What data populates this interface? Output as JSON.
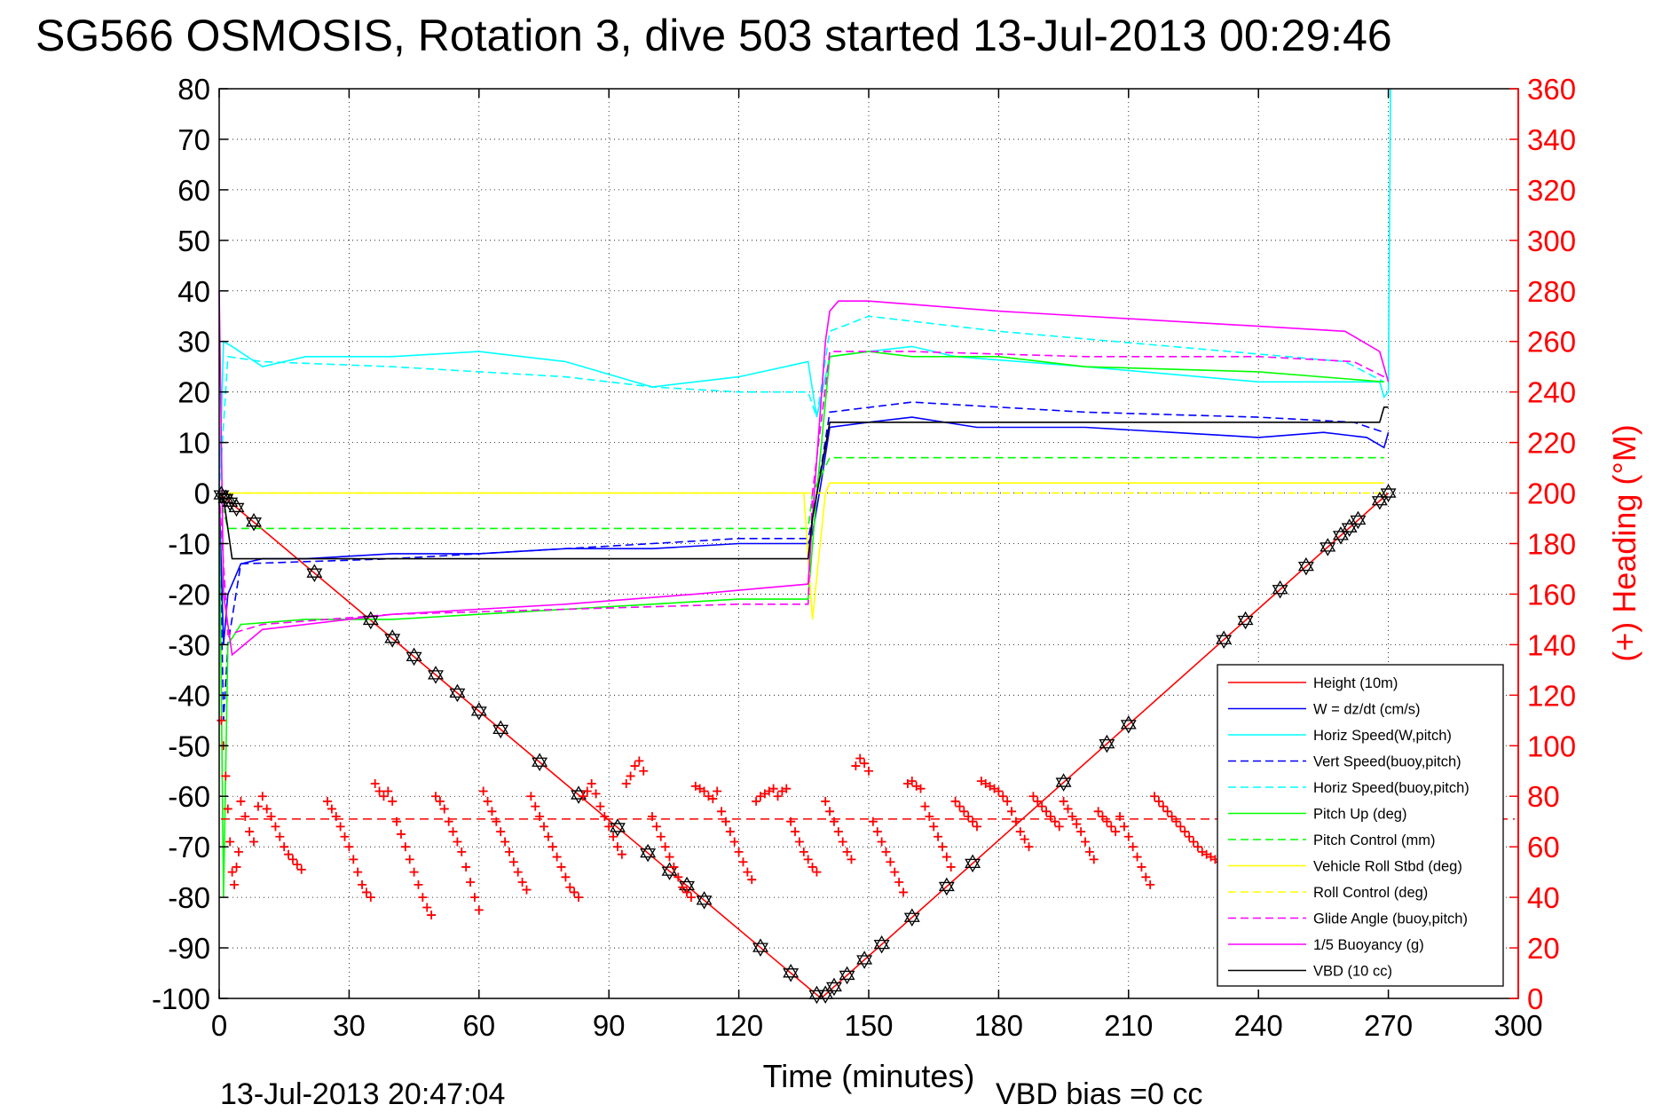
{
  "title": "SG566 OSMOSIS, Rotation 3, dive 503 started 13-Jul-2013 00:29:46",
  "footer": {
    "timestamp": "13-Jul-2013 20:47:04",
    "vbd_bias": "VBD bias =0 cc"
  },
  "colors": {
    "red": "#ff0000",
    "blue": "#0000ff",
    "cyan": "#00ffff",
    "green": "#00ff00",
    "yellow": "#ffff00",
    "magenta": "#ff00ff",
    "black": "#000000"
  },
  "chart_data": {
    "type": "line",
    "title": "SG566 OSMOSIS, Rotation 3, dive 503 started 13-Jul-2013 00:29:46",
    "xlabel": "Time (minutes)",
    "ylabel": "",
    "y2label": "(+) Heading (°M)",
    "xlim": [
      0,
      300
    ],
    "ylim": [
      -100,
      80
    ],
    "y2lim": [
      0,
      360
    ],
    "grid": true,
    "legend_position": "bottom-right",
    "x_ticks": [
      "0",
      "30",
      "60",
      "90",
      "120",
      "150",
      "180",
      "210",
      "240",
      "270",
      "300"
    ],
    "y_ticks": [
      "80",
      "70",
      "60",
      "50",
      "40",
      "30",
      "20",
      "10",
      "0",
      "-10",
      "-20",
      "-30",
      "-40",
      "-50",
      "-60",
      "-70",
      "-80",
      "-90",
      "-100"
    ],
    "y2_ticks": [
      "360",
      "340",
      "320",
      "300",
      "280",
      "260",
      "240",
      "220",
      "200",
      "180",
      "160",
      "140",
      "120",
      "100",
      "80",
      "60",
      "40",
      "20",
      "0"
    ],
    "series": [
      {
        "name": "Height (10m)",
        "color": "#ff0000",
        "dash": "solid",
        "x": [
          0,
          139,
          270
        ],
        "y": [
          0,
          -100,
          0
        ]
      },
      {
        "name": "W = dz/dt (cm/s)",
        "color": "#0000ff",
        "dash": "solid",
        "x": [
          0,
          1,
          2,
          5,
          10,
          20,
          40,
          60,
          80,
          100,
          120,
          136,
          137,
          139,
          141,
          150,
          160,
          175,
          180,
          200,
          220,
          240,
          255,
          265,
          269,
          270
        ],
        "y": [
          0,
          -30,
          -20,
          -14,
          -13,
          -13,
          -12,
          -12,
          -11,
          -11,
          -10,
          -10,
          -8,
          2,
          13,
          14,
          15,
          13,
          13,
          13,
          12,
          11,
          12,
          11,
          9,
          12
        ]
      },
      {
        "name": "Horiz Speed(W,pitch)",
        "color": "#00ffff",
        "dash": "solid",
        "x": [
          0,
          1,
          3,
          10,
          20,
          40,
          60,
          70,
          80,
          100,
          120,
          136,
          138,
          141,
          150,
          160,
          170,
          200,
          240,
          260,
          268,
          269,
          270,
          270.5
        ],
        "y": [
          0,
          30,
          29,
          25,
          27,
          27,
          28,
          27,
          26,
          21,
          23,
          26,
          15,
          27,
          28,
          29,
          27,
          25,
          22,
          22,
          22,
          19,
          20,
          80
        ]
      },
      {
        "name": "Vert Speed(buoy,pitch)",
        "color": "#0000ff",
        "dash": "dashed",
        "x": [
          0,
          1,
          2,
          5,
          40,
          80,
          120,
          136,
          137,
          139,
          141,
          160,
          200,
          240,
          262,
          269
        ],
        "y": [
          0,
          -45,
          -30,
          -14,
          -13,
          -11,
          -9,
          -9,
          -5,
          5,
          16,
          18,
          16,
          15,
          14,
          12
        ]
      },
      {
        "name": "Horiz Speed(buoy,pitch)",
        "color": "#00ffff",
        "dash": "dashed",
        "x": [
          0,
          2,
          10,
          40,
          80,
          100,
          120,
          136,
          138,
          141,
          150,
          180,
          220,
          260,
          269
        ],
        "y": [
          0,
          27,
          26,
          25,
          23,
          21,
          20,
          20,
          15,
          32,
          35,
          32,
          29,
          26,
          22
        ]
      },
      {
        "name": "Pitch Up (deg)",
        "color": "#00ff00",
        "dash": "solid",
        "x": [
          0,
          1,
          2,
          5,
          20,
          40,
          60,
          80,
          100,
          120,
          136,
          138,
          141,
          150,
          160,
          180,
          200,
          240,
          269
        ],
        "y": [
          0,
          -80,
          -30,
          -26,
          -25,
          -25,
          -24,
          -23,
          -22,
          -21,
          -21,
          0,
          27,
          28,
          27,
          27,
          25,
          24,
          22
        ]
      },
      {
        "name": "Pitch Control (mm)",
        "color": "#00ff00",
        "dash": "dashed",
        "x": [
          0,
          2,
          136,
          137,
          141,
          269
        ],
        "y": [
          0,
          -7,
          -7,
          0,
          7,
          7
        ]
      },
      {
        "name": "Vehicle Roll Stbd (deg)",
        "color": "#ffff00",
        "dash": "solid",
        "x": [
          0,
          2,
          135,
          137,
          140,
          141,
          269
        ],
        "y": [
          0,
          0,
          0,
          -25,
          0,
          2,
          2
        ]
      },
      {
        "name": "Roll Control (deg)",
        "color": "#ffff00",
        "dash": "dashed",
        "x": [
          0,
          2,
          136,
          137,
          141,
          269
        ],
        "y": [
          0,
          0,
          0,
          0,
          0,
          0
        ]
      },
      {
        "name": "Glide Angle (buoy,pitch)",
        "color": "#ff00ff",
        "dash": "dashed",
        "x": [
          0,
          2,
          10,
          40,
          80,
          120,
          136,
          137,
          141,
          160,
          200,
          240,
          262,
          269
        ],
        "y": [
          0,
          -28,
          -26,
          -24,
          -23,
          -22,
          -22,
          0,
          28,
          28,
          27,
          27,
          26,
          23
        ]
      },
      {
        "name": "1/5 Buoyancy (g)",
        "color": "#ff00ff",
        "dash": "solid",
        "x": [
          0,
          1,
          3,
          10,
          40,
          80,
          110,
          136,
          137,
          140,
          141,
          143,
          150,
          180,
          220,
          260,
          268,
          270
        ],
        "y": [
          40,
          -20,
          -32,
          -27,
          -24,
          -22,
          -20,
          -18,
          -5,
          30,
          36,
          38,
          38,
          36,
          34,
          32,
          28,
          22
        ]
      },
      {
        "name": "VBD (10 cc)",
        "color": "#000000",
        "dash": "solid",
        "x": [
          0,
          1,
          3,
          136,
          137,
          141,
          143,
          268,
          269,
          270
        ],
        "y": [
          0,
          -1,
          -13,
          -13,
          -5,
          14,
          14,
          14,
          17,
          17
        ]
      }
    ],
    "height_markers_x": [
      0.5,
      1.5,
      2.5,
      4,
      8,
      22,
      35,
      40,
      45,
      50,
      55,
      60,
      65,
      74,
      83,
      92,
      99,
      104,
      108,
      112,
      125,
      132,
      138,
      140,
      142,
      145,
      149,
      153,
      160,
      168,
      174,
      195,
      205,
      210,
      232,
      237,
      245,
      251,
      256,
      259,
      261,
      263,
      268,
      270
    ],
    "heading_series": {
      "name": "(+) Heading (°M)",
      "color": "#ff0000",
      "axis": "right",
      "mean_line": 71,
      "points": [
        [
          0.5,
          110
        ],
        [
          1,
          100
        ],
        [
          1.5,
          88
        ],
        [
          2,
          75
        ],
        [
          2.5,
          62
        ],
        [
          3,
          50
        ],
        [
          3.5,
          45
        ],
        [
          4,
          52
        ],
        [
          4.5,
          58
        ],
        [
          5,
          78
        ],
        [
          6,
          72
        ],
        [
          7,
          66
        ],
        [
          8,
          62
        ],
        [
          9,
          76
        ],
        [
          10,
          80
        ],
        [
          11,
          75
        ],
        [
          12,
          72
        ],
        [
          13,
          68
        ],
        [
          14,
          64
        ],
        [
          15,
          60
        ],
        [
          16,
          57
        ],
        [
          17,
          55
        ],
        [
          18,
          53
        ],
        [
          19,
          51
        ],
        [
          25,
          78
        ],
        [
          26,
          75
        ],
        [
          27,
          72
        ],
        [
          28,
          68
        ],
        [
          29,
          64
        ],
        [
          30,
          60
        ],
        [
          31,
          55
        ],
        [
          32,
          50
        ],
        [
          33,
          45
        ],
        [
          34,
          42
        ],
        [
          35,
          40
        ],
        [
          36,
          85
        ],
        [
          37,
          82
        ],
        [
          38,
          80
        ],
        [
          39,
          82
        ],
        [
          40,
          78
        ],
        [
          41,
          70
        ],
        [
          42,
          65
        ],
        [
          43,
          60
        ],
        [
          44,
          55
        ],
        [
          45,
          50
        ],
        [
          46,
          45
        ],
        [
          47,
          40
        ],
        [
          48,
          36
        ],
        [
          49,
          33
        ],
        [
          50,
          80
        ],
        [
          51,
          78
        ],
        [
          52,
          75
        ],
        [
          53,
          70
        ],
        [
          54,
          66
        ],
        [
          55,
          62
        ],
        [
          56,
          58
        ],
        [
          57,
          52
        ],
        [
          58,
          46
        ],
        [
          59,
          40
        ],
        [
          60,
          35
        ],
        [
          61,
          82
        ],
        [
          62,
          78
        ],
        [
          63,
          74
        ],
        [
          64,
          70
        ],
        [
          65,
          66
        ],
        [
          66,
          62
        ],
        [
          67,
          58
        ],
        [
          68,
          54
        ],
        [
          69,
          50
        ],
        [
          70,
          46
        ],
        [
          71,
          43
        ],
        [
          72,
          80
        ],
        [
          73,
          76
        ],
        [
          74,
          72
        ],
        [
          75,
          68
        ],
        [
          76,
          64
        ],
        [
          77,
          60
        ],
        [
          78,
          56
        ],
        [
          79,
          52
        ],
        [
          80,
          48
        ],
        [
          81,
          44
        ],
        [
          82,
          42
        ],
        [
          83,
          40
        ],
        [
          84,
          80
        ],
        [
          85,
          82
        ],
        [
          86,
          85
        ],
        [
          87,
          81
        ],
        [
          88,
          76
        ],
        [
          89,
          72
        ],
        [
          90,
          68
        ],
        [
          91,
          64
        ],
        [
          92,
          60
        ],
        [
          93,
          57
        ],
        [
          94,
          85
        ],
        [
          95,
          88
        ],
        [
          96,
          92
        ],
        [
          97,
          94
        ],
        [
          98,
          90
        ],
        [
          100,
          72
        ],
        [
          101,
          68
        ],
        [
          102,
          64
        ],
        [
          103,
          60
        ],
        [
          104,
          56
        ],
        [
          105,
          52
        ],
        [
          106,
          48
        ],
        [
          107,
          44
        ],
        [
          108,
          42
        ],
        [
          109,
          40
        ],
        [
          110,
          84
        ],
        [
          111,
          83
        ],
        [
          112,
          82
        ],
        [
          113,
          80
        ],
        [
          114,
          79
        ],
        [
          115,
          82
        ],
        [
          116,
          74
        ],
        [
          117,
          70
        ],
        [
          118,
          66
        ],
        [
          119,
          62
        ],
        [
          120,
          58
        ],
        [
          121,
          54
        ],
        [
          122,
          50
        ],
        [
          123,
          47
        ],
        [
          124,
          78
        ],
        [
          125,
          80
        ],
        [
          126,
          81
        ],
        [
          127,
          82
        ],
        [
          128,
          83
        ],
        [
          129,
          80
        ],
        [
          130,
          82
        ],
        [
          131,
          83
        ],
        [
          132,
          70
        ],
        [
          133,
          66
        ],
        [
          134,
          62
        ],
        [
          135,
          58
        ],
        [
          136,
          55
        ],
        [
          137,
          52
        ],
        [
          138,
          50
        ],
        [
          140,
          78
        ],
        [
          141,
          74
        ],
        [
          142,
          70
        ],
        [
          143,
          66
        ],
        [
          144,
          62
        ],
        [
          145,
          58
        ],
        [
          146,
          55
        ],
        [
          147,
          92
        ],
        [
          148,
          95
        ],
        [
          149,
          93
        ],
        [
          150,
          90
        ],
        [
          151,
          70
        ],
        [
          152,
          66
        ],
        [
          153,
          62
        ],
        [
          154,
          58
        ],
        [
          155,
          54
        ],
        [
          156,
          50
        ],
        [
          157,
          46
        ],
        [
          158,
          42
        ],
        [
          159,
          85
        ],
        [
          160,
          86
        ],
        [
          161,
          84
        ],
        [
          162,
          83
        ],
        [
          163,
          76
        ],
        [
          164,
          72
        ],
        [
          165,
          68
        ],
        [
          166,
          64
        ],
        [
          167,
          60
        ],
        [
          168,
          56
        ],
        [
          169,
          52
        ],
        [
          170,
          78
        ],
        [
          171,
          76
        ],
        [
          172,
          74
        ],
        [
          173,
          72
        ],
        [
          174,
          70
        ],
        [
          175,
          68
        ],
        [
          176,
          86
        ],
        [
          177,
          85
        ],
        [
          178,
          84
        ],
        [
          179,
          83
        ],
        [
          180,
          82
        ],
        [
          181,
          80
        ],
        [
          182,
          78
        ],
        [
          183,
          74
        ],
        [
          184,
          70
        ],
        [
          185,
          66
        ],
        [
          186,
          63
        ],
        [
          187,
          60
        ],
        [
          188,
          80
        ],
        [
          189,
          78
        ],
        [
          190,
          76
        ],
        [
          191,
          74
        ],
        [
          192,
          72
        ],
        [
          193,
          70
        ],
        [
          194,
          68
        ],
        [
          195,
          78
        ],
        [
          196,
          75
        ],
        [
          197,
          72
        ],
        [
          198,
          69
        ],
        [
          199,
          66
        ],
        [
          200,
          62
        ],
        [
          201,
          58
        ],
        [
          202,
          55
        ],
        [
          203,
          74
        ],
        [
          204,
          72
        ],
        [
          205,
          70
        ],
        [
          206,
          68
        ],
        [
          207,
          66
        ],
        [
          208,
          72
        ],
        [
          209,
          68
        ],
        [
          210,
          64
        ],
        [
          211,
          60
        ],
        [
          212,
          56
        ],
        [
          213,
          52
        ],
        [
          214,
          48
        ],
        [
          215,
          45
        ],
        [
          216,
          80
        ],
        [
          217,
          78
        ],
        [
          218,
          76
        ],
        [
          219,
          74
        ],
        [
          220,
          72
        ],
        [
          221,
          70
        ],
        [
          222,
          68
        ],
        [
          223,
          66
        ],
        [
          224,
          64
        ],
        [
          225,
          62
        ],
        [
          226,
          60
        ],
        [
          227,
          58
        ],
        [
          228,
          57
        ],
        [
          229,
          56
        ],
        [
          230,
          55
        ],
        [
          231,
          54
        ],
        [
          232,
          53
        ]
      ]
    }
  }
}
